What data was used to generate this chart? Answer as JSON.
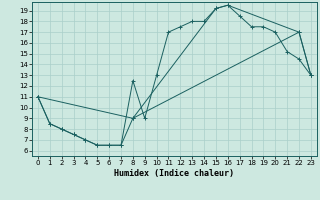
{
  "title": "",
  "xlabel": "Humidex (Indice chaleur)",
  "ylabel": "",
  "xlim": [
    -0.5,
    23.5
  ],
  "ylim": [
    5.5,
    19.8
  ],
  "xticks": [
    0,
    1,
    2,
    3,
    4,
    5,
    6,
    7,
    8,
    9,
    10,
    11,
    12,
    13,
    14,
    15,
    16,
    17,
    18,
    19,
    20,
    21,
    22,
    23
  ],
  "yticks": [
    6,
    7,
    8,
    9,
    10,
    11,
    12,
    13,
    14,
    15,
    16,
    17,
    18,
    19
  ],
  "bg_color": "#cde8e0",
  "line_color": "#1a6060",
  "grid_color": "#aacfca",
  "line1_x": [
    0,
    1,
    2,
    3,
    4,
    5,
    6,
    7,
    8,
    9,
    10,
    11,
    12,
    13,
    14,
    15,
    16,
    17,
    18,
    19,
    20,
    21,
    22,
    23
  ],
  "line1_y": [
    11,
    8.5,
    8,
    7.5,
    7,
    6.5,
    6.5,
    6.5,
    12.5,
    9,
    13,
    17,
    17.5,
    18,
    18,
    19.2,
    19.5,
    18.5,
    17.5,
    17.5,
    17,
    15.2,
    14.5,
    13
  ],
  "line2_x": [
    0,
    1,
    2,
    3,
    4,
    5,
    6,
    7,
    8,
    22,
    23
  ],
  "line2_y": [
    11,
    8.5,
    8,
    7.5,
    7,
    6.5,
    6.5,
    6.5,
    9,
    17,
    13
  ],
  "line3_x": [
    0,
    8,
    15,
    16,
    22,
    23
  ],
  "line3_y": [
    11,
    9,
    19.2,
    19.5,
    17,
    13
  ]
}
